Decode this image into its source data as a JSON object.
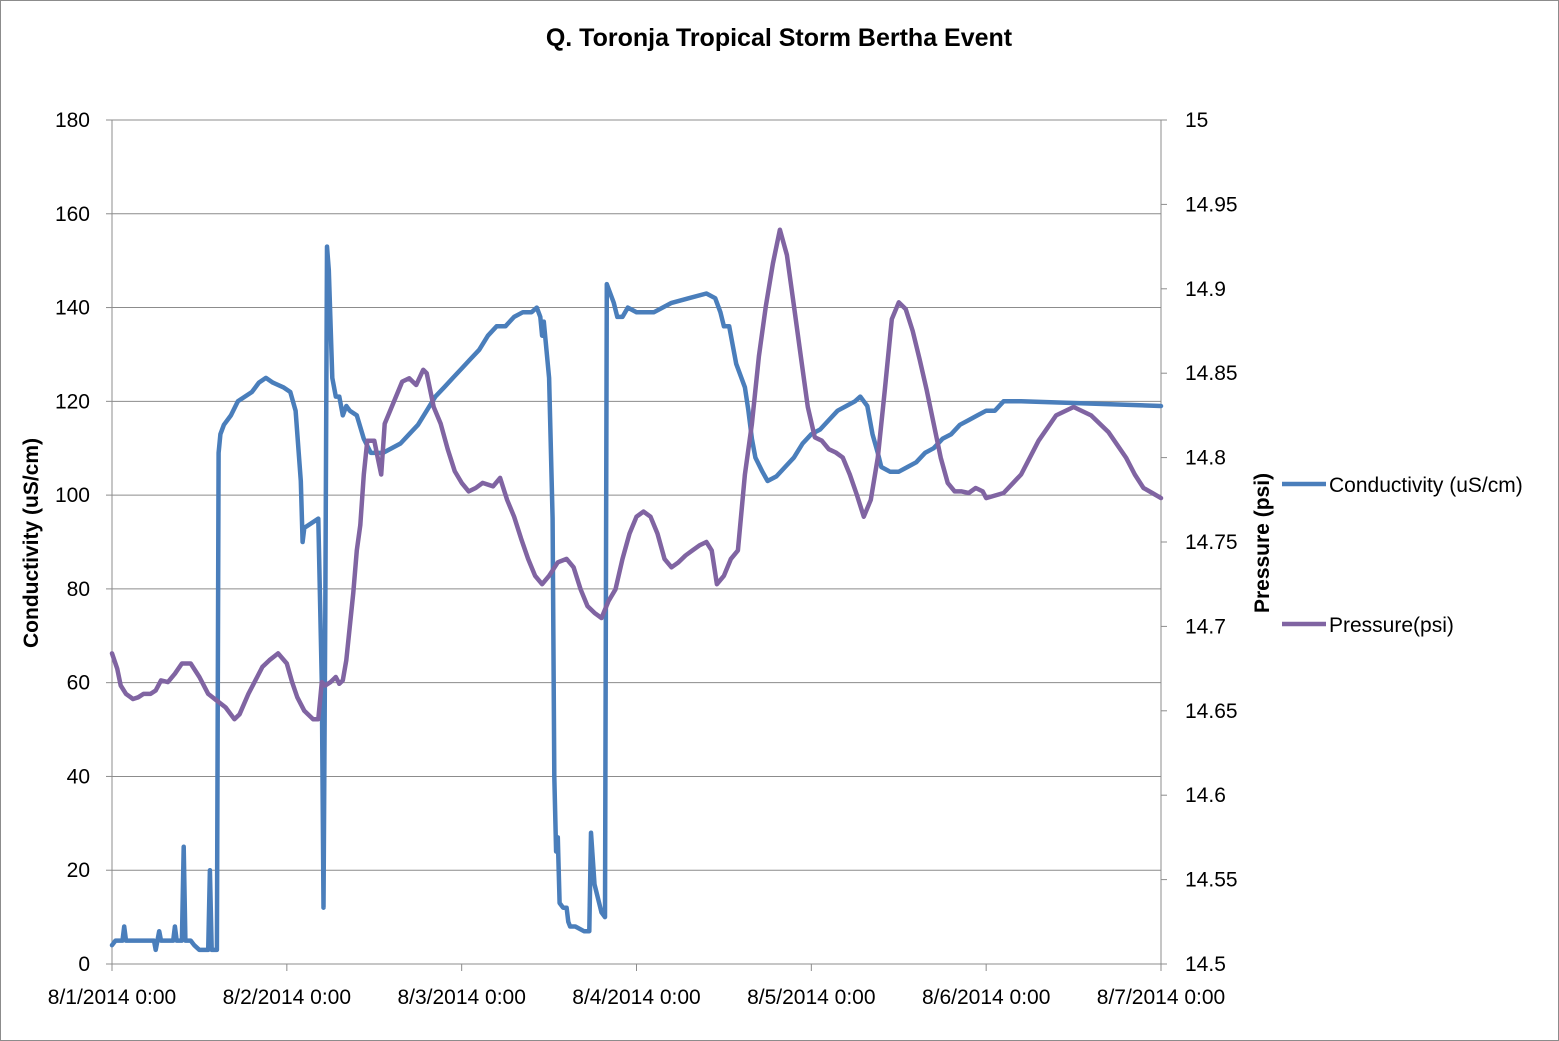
{
  "chart_data": {
    "type": "line",
    "title": "Q. Toronja Tropical Storm Bertha Event",
    "xlabel": "",
    "ylabel": "Conductivity (uS/cm)",
    "y2label": "Pressure (psi)",
    "x_ticks": [
      "8/1/2014 0:00",
      "8/2/2014 0:00",
      "8/3/2014 0:00",
      "8/4/2014 0:00",
      "8/5/2014 0:00",
      "8/6/2014 0:00",
      "8/7/2014 0:00"
    ],
    "xlim_days": [
      0,
      6
    ],
    "ylim": [
      0,
      180
    ],
    "y_ticks": [
      "0",
      "20",
      "40",
      "60",
      "80",
      "100",
      "120",
      "140",
      "160",
      "180"
    ],
    "y2lim": [
      14.5,
      15
    ],
    "y2_ticks": [
      "14.5",
      "14.55",
      "14.6",
      "14.65",
      "14.7",
      "14.75",
      "14.8",
      "14.85",
      "14.9",
      "14.95",
      "15"
    ],
    "grid": true,
    "legend_position": "right",
    "series": [
      {
        "name": "Conductivity (uS/cm)",
        "axis": "left",
        "color": "#4a7ebb",
        "points": [
          [
            0.0,
            4
          ],
          [
            0.02,
            5
          ],
          [
            0.06,
            5
          ],
          [
            0.07,
            8
          ],
          [
            0.08,
            5
          ],
          [
            0.2,
            5
          ],
          [
            0.24,
            5
          ],
          [
            0.25,
            3
          ],
          [
            0.27,
            7
          ],
          [
            0.28,
            5
          ],
          [
            0.35,
            5
          ],
          [
            0.36,
            8
          ],
          [
            0.37,
            5
          ],
          [
            0.4,
            5
          ],
          [
            0.41,
            25
          ],
          [
            0.42,
            5
          ],
          [
            0.45,
            5
          ],
          [
            0.47,
            4
          ],
          [
            0.5,
            3
          ],
          [
            0.55,
            3
          ],
          [
            0.56,
            20
          ],
          [
            0.57,
            3
          ],
          [
            0.6,
            3
          ],
          [
            0.61,
            109
          ],
          [
            0.62,
            113
          ],
          [
            0.64,
            115
          ],
          [
            0.68,
            117
          ],
          [
            0.72,
            120
          ],
          [
            0.76,
            121
          ],
          [
            0.8,
            122
          ],
          [
            0.84,
            124
          ],
          [
            0.88,
            125
          ],
          [
            0.92,
            124
          ],
          [
            0.98,
            123
          ],
          [
            1.02,
            122
          ],
          [
            1.05,
            118
          ],
          [
            1.08,
            103
          ],
          [
            1.09,
            90
          ],
          [
            1.1,
            93
          ],
          [
            1.14,
            94
          ],
          [
            1.18,
            95
          ],
          [
            1.2,
            60
          ],
          [
            1.21,
            12
          ],
          [
            1.22,
            75
          ],
          [
            1.23,
            153
          ],
          [
            1.24,
            148
          ],
          [
            1.26,
            125
          ],
          [
            1.28,
            121
          ],
          [
            1.3,
            121
          ],
          [
            1.32,
            117
          ],
          [
            1.34,
            119
          ],
          [
            1.36,
            118
          ],
          [
            1.4,
            117
          ],
          [
            1.44,
            112
          ],
          [
            1.48,
            109
          ],
          [
            1.55,
            109
          ],
          [
            1.65,
            111
          ],
          [
            1.7,
            113
          ],
          [
            1.75,
            115
          ],
          [
            1.8,
            118
          ],
          [
            1.85,
            121
          ],
          [
            1.9,
            123
          ],
          [
            1.95,
            125
          ],
          [
            2.0,
            127
          ],
          [
            2.05,
            129
          ],
          [
            2.1,
            131
          ],
          [
            2.15,
            134
          ],
          [
            2.2,
            136
          ],
          [
            2.25,
            136
          ],
          [
            2.3,
            138
          ],
          [
            2.35,
            139
          ],
          [
            2.4,
            139
          ],
          [
            2.43,
            140
          ],
          [
            2.45,
            138
          ],
          [
            2.46,
            134
          ],
          [
            2.47,
            137
          ],
          [
            2.5,
            125
          ],
          [
            2.52,
            95
          ],
          [
            2.53,
            40
          ],
          [
            2.54,
            24
          ],
          [
            2.55,
            27
          ],
          [
            2.56,
            13
          ],
          [
            2.58,
            12
          ],
          [
            2.6,
            12
          ],
          [
            2.61,
            9
          ],
          [
            2.62,
            8
          ],
          [
            2.65,
            8
          ],
          [
            2.7,
            7
          ],
          [
            2.73,
            7
          ],
          [
            2.74,
            28
          ],
          [
            2.76,
            17
          ],
          [
            2.8,
            11
          ],
          [
            2.82,
            10
          ],
          [
            2.83,
            145
          ],
          [
            2.85,
            143
          ],
          [
            2.87,
            141
          ],
          [
            2.89,
            138
          ],
          [
            2.92,
            138
          ],
          [
            2.95,
            140
          ],
          [
            3.0,
            139
          ],
          [
            3.1,
            139
          ],
          [
            3.2,
            141
          ],
          [
            3.3,
            142
          ],
          [
            3.4,
            143
          ],
          [
            3.45,
            142
          ],
          [
            3.48,
            139
          ],
          [
            3.5,
            136
          ],
          [
            3.53,
            136
          ],
          [
            3.55,
            132
          ],
          [
            3.57,
            128
          ],
          [
            3.6,
            125
          ],
          [
            3.62,
            123
          ],
          [
            3.64,
            118
          ],
          [
            3.66,
            112
          ],
          [
            3.68,
            108
          ],
          [
            3.72,
            105
          ],
          [
            3.75,
            103
          ],
          [
            3.8,
            104
          ],
          [
            3.85,
            106
          ],
          [
            3.9,
            108
          ],
          [
            3.95,
            111
          ],
          [
            4.0,
            113
          ],
          [
            4.05,
            114
          ],
          [
            4.1,
            116
          ],
          [
            4.15,
            118
          ],
          [
            4.2,
            119
          ],
          [
            4.25,
            120
          ],
          [
            4.28,
            121
          ],
          [
            4.3,
            120
          ],
          [
            4.32,
            119
          ],
          [
            4.35,
            113
          ],
          [
            4.38,
            109
          ],
          [
            4.4,
            106
          ],
          [
            4.45,
            105
          ],
          [
            4.5,
            105
          ],
          [
            4.55,
            106
          ],
          [
            4.6,
            107
          ],
          [
            4.65,
            109
          ],
          [
            4.7,
            110
          ],
          [
            4.75,
            112
          ],
          [
            4.8,
            113
          ],
          [
            4.85,
            115
          ],
          [
            4.9,
            116
          ],
          [
            4.95,
            117
          ],
          [
            5.0,
            118
          ],
          [
            5.05,
            118
          ],
          [
            5.1,
            120
          ],
          [
            5.15,
            120
          ],
          [
            5.2,
            120
          ],
          [
            6.0,
            119
          ]
        ]
      },
      {
        "name": "Pressure(psi)",
        "axis": "right",
        "color": "#8064a2",
        "points": [
          [
            0.0,
            14.684
          ],
          [
            0.03,
            14.675
          ],
          [
            0.05,
            14.665
          ],
          [
            0.08,
            14.66
          ],
          [
            0.12,
            14.657
          ],
          [
            0.15,
            14.658
          ],
          [
            0.18,
            14.66
          ],
          [
            0.22,
            14.66
          ],
          [
            0.25,
            14.662
          ],
          [
            0.28,
            14.668
          ],
          [
            0.32,
            14.667
          ],
          [
            0.36,
            14.672
          ],
          [
            0.4,
            14.678
          ],
          [
            0.45,
            14.678
          ],
          [
            0.5,
            14.67
          ],
          [
            0.55,
            14.66
          ],
          [
            0.6,
            14.656
          ],
          [
            0.65,
            14.652
          ],
          [
            0.7,
            14.645
          ],
          [
            0.73,
            14.648
          ],
          [
            0.78,
            14.66
          ],
          [
            0.82,
            14.668
          ],
          [
            0.86,
            14.676
          ],
          [
            0.9,
            14.68
          ],
          [
            0.95,
            14.684
          ],
          [
            1.0,
            14.678
          ],
          [
            1.03,
            14.667
          ],
          [
            1.06,
            14.658
          ],
          [
            1.1,
            14.65
          ],
          [
            1.15,
            14.645
          ],
          [
            1.18,
            14.645
          ],
          [
            1.2,
            14.667
          ],
          [
            1.22,
            14.665
          ],
          [
            1.25,
            14.667
          ],
          [
            1.28,
            14.67
          ],
          [
            1.3,
            14.666
          ],
          [
            1.32,
            14.668
          ],
          [
            1.34,
            14.68
          ],
          [
            1.36,
            14.7
          ],
          [
            1.38,
            14.72
          ],
          [
            1.4,
            14.745
          ],
          [
            1.42,
            14.76
          ],
          [
            1.44,
            14.79
          ],
          [
            1.46,
            14.81
          ],
          [
            1.5,
            14.81
          ],
          [
            1.52,
            14.8
          ],
          [
            1.54,
            14.79
          ],
          [
            1.56,
            14.82
          ],
          [
            1.58,
            14.825
          ],
          [
            1.62,
            14.835
          ],
          [
            1.66,
            14.845
          ],
          [
            1.7,
            14.847
          ],
          [
            1.74,
            14.843
          ],
          [
            1.78,
            14.852
          ],
          [
            1.8,
            14.85
          ],
          [
            1.84,
            14.83
          ],
          [
            1.88,
            14.82
          ],
          [
            1.92,
            14.805
          ],
          [
            1.96,
            14.792
          ],
          [
            2.0,
            14.785
          ],
          [
            2.04,
            14.78
          ],
          [
            2.08,
            14.782
          ],
          [
            2.12,
            14.785
          ],
          [
            2.18,
            14.783
          ],
          [
            2.22,
            14.788
          ],
          [
            2.26,
            14.775
          ],
          [
            2.3,
            14.765
          ],
          [
            2.34,
            14.752
          ],
          [
            2.38,
            14.74
          ],
          [
            2.42,
            14.73
          ],
          [
            2.46,
            14.725
          ],
          [
            2.5,
            14.73
          ],
          [
            2.55,
            14.738
          ],
          [
            2.6,
            14.74
          ],
          [
            2.64,
            14.735
          ],
          [
            2.68,
            14.722
          ],
          [
            2.72,
            14.712
          ],
          [
            2.76,
            14.708
          ],
          [
            2.8,
            14.705
          ],
          [
            2.84,
            14.715
          ],
          [
            2.88,
            14.722
          ],
          [
            2.92,
            14.74
          ],
          [
            2.96,
            14.755
          ],
          [
            3.0,
            14.765
          ],
          [
            3.04,
            14.768
          ],
          [
            3.08,
            14.765
          ],
          [
            3.12,
            14.755
          ],
          [
            3.16,
            14.74
          ],
          [
            3.2,
            14.735
          ],
          [
            3.24,
            14.738
          ],
          [
            3.28,
            14.742
          ],
          [
            3.32,
            14.745
          ],
          [
            3.36,
            14.748
          ],
          [
            3.4,
            14.75
          ],
          [
            3.43,
            14.745
          ],
          [
            3.46,
            14.725
          ],
          [
            3.5,
            14.73
          ],
          [
            3.54,
            14.74
          ],
          [
            3.58,
            14.745
          ],
          [
            3.62,
            14.79
          ],
          [
            3.66,
            14.82
          ],
          [
            3.7,
            14.86
          ],
          [
            3.74,
            14.89
          ],
          [
            3.78,
            14.915
          ],
          [
            3.82,
            14.935
          ],
          [
            3.86,
            14.92
          ],
          [
            3.9,
            14.89
          ],
          [
            3.94,
            14.86
          ],
          [
            3.98,
            14.83
          ],
          [
            4.02,
            14.812
          ],
          [
            4.06,
            14.81
          ],
          [
            4.1,
            14.805
          ],
          [
            4.14,
            14.803
          ],
          [
            4.18,
            14.8
          ],
          [
            4.22,
            14.79
          ],
          [
            4.26,
            14.778
          ],
          [
            4.3,
            14.765
          ],
          [
            4.34,
            14.775
          ],
          [
            4.38,
            14.8
          ],
          [
            4.42,
            14.84
          ],
          [
            4.46,
            14.882
          ],
          [
            4.5,
            14.892
          ],
          [
            4.54,
            14.888
          ],
          [
            4.58,
            14.875
          ],
          [
            4.62,
            14.858
          ],
          [
            4.66,
            14.84
          ],
          [
            4.7,
            14.82
          ],
          [
            4.74,
            14.8
          ],
          [
            4.78,
            14.785
          ],
          [
            4.82,
            14.78
          ],
          [
            4.86,
            14.78
          ],
          [
            4.9,
            14.779
          ],
          [
            4.94,
            14.782
          ],
          [
            4.98,
            14.78
          ],
          [
            5.0,
            14.776
          ],
          [
            5.1,
            14.779
          ],
          [
            5.2,
            14.79
          ],
          [
            5.3,
            14.81
          ],
          [
            5.4,
            14.825
          ],
          [
            5.5,
            14.83
          ],
          [
            5.6,
            14.825
          ],
          [
            5.7,
            14.815
          ],
          [
            5.8,
            14.8
          ],
          [
            5.85,
            14.79
          ],
          [
            5.9,
            14.782
          ],
          [
            5.95,
            14.779
          ],
          [
            6.0,
            14.776
          ]
        ]
      }
    ]
  }
}
